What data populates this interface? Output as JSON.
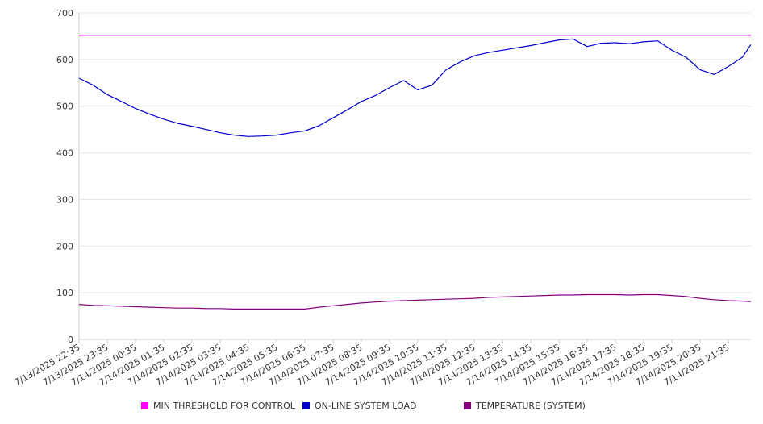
{
  "chart_data": {
    "type": "line",
    "title": "",
    "xlabel": "",
    "ylabel": "",
    "ylim": [
      0,
      700
    ],
    "yticks": [
      0,
      100,
      200,
      300,
      400,
      500,
      600,
      700
    ],
    "grid": "horizontal",
    "legend_position": "bottom",
    "x_tick_labels": [
      "7/13/2025 22:35",
      "7/13/2025 23:35",
      "7/14/2025 00:35",
      "7/14/2025 01:35",
      "7/14/2025 02:35",
      "7/14/2025 03:35",
      "7/14/2025 04:35",
      "7/14/2025 05:35",
      "7/14/2025 06:35",
      "7/14/2025 07:35",
      "7/14/2025 08:35",
      "7/14/2025 09:35",
      "7/14/2025 10:35",
      "7/14/2025 11:35",
      "7/14/2025 12:35",
      "7/14/2025 13:35",
      "7/14/2025 14:35",
      "7/14/2025 15:35",
      "7/14/2025 16:35",
      "7/14/2025 17:35",
      "7/14/2025 18:35",
      "7/14/2025 19:35",
      "7/14/2025 20:35",
      "7/14/2025 21:35"
    ],
    "x_hours_from_first_tick": [
      0,
      0.5,
      1,
      1.5,
      2,
      2.5,
      3,
      3.5,
      4,
      4.5,
      5,
      5.5,
      6,
      6.5,
      7,
      7.5,
      8,
      8.5,
      9,
      9.5,
      10,
      10.5,
      11,
      11.5,
      12,
      12.5,
      13,
      13.5,
      14,
      14.5,
      15,
      15.5,
      16,
      16.5,
      17,
      17.5,
      18,
      18.5,
      19,
      19.5,
      20,
      20.5,
      21,
      21.5,
      22,
      22.5,
      23,
      23.5,
      23.8
    ],
    "series": [
      {
        "name": "MIN THRESHOLD FOR CONTROL",
        "color": "#ff00ff",
        "values": [
          652,
          652,
          652,
          652,
          652,
          652,
          652,
          652,
          652,
          652,
          652,
          652,
          652,
          652,
          652,
          652,
          652,
          652,
          652,
          652,
          652,
          652,
          652,
          652,
          652,
          652,
          652,
          652,
          652,
          652,
          652,
          652,
          652,
          652,
          652,
          652,
          652,
          652,
          652,
          652,
          652,
          652,
          652,
          652,
          652,
          652,
          652,
          652,
          652
        ]
      },
      {
        "name": "ON-LINE SYSTEM LOAD",
        "color": "#0000cc",
        "values": [
          560,
          545,
          525,
          510,
          495,
          483,
          472,
          463,
          457,
          450,
          443,
          438,
          435,
          436,
          438,
          443,
          447,
          458,
          475,
          492,
          510,
          523,
          540,
          555,
          535,
          545,
          578,
          595,
          608,
          615,
          620,
          625,
          630,
          636,
          642,
          644,
          628,
          635,
          636,
          634,
          638,
          640,
          620,
          605,
          578,
          568,
          585,
          605,
          632
        ]
      },
      {
        "name": "TEMPERATURE (SYSTEM)",
        "color": "#800080",
        "values": [
          75,
          73,
          72,
          71,
          70,
          69,
          68,
          67,
          67,
          66,
          66,
          65,
          65,
          65,
          65,
          65,
          65,
          69,
          72,
          75,
          78,
          80,
          82,
          83,
          84,
          85,
          86,
          87,
          88,
          90,
          91,
          92,
          93,
          94,
          95,
          95,
          96,
          96,
          96,
          95,
          96,
          96,
          94,
          92,
          88,
          85,
          83,
          82,
          81
        ]
      }
    ]
  },
  "legend": {
    "items": [
      {
        "label": "MIN THRESHOLD FOR CONTROL",
        "color": "#ff00ff"
      },
      {
        "label": "ON-LINE SYSTEM LOAD",
        "color": "#0000cc"
      },
      {
        "label": "TEMPERATURE (SYSTEM)",
        "color": "#800080"
      }
    ]
  }
}
